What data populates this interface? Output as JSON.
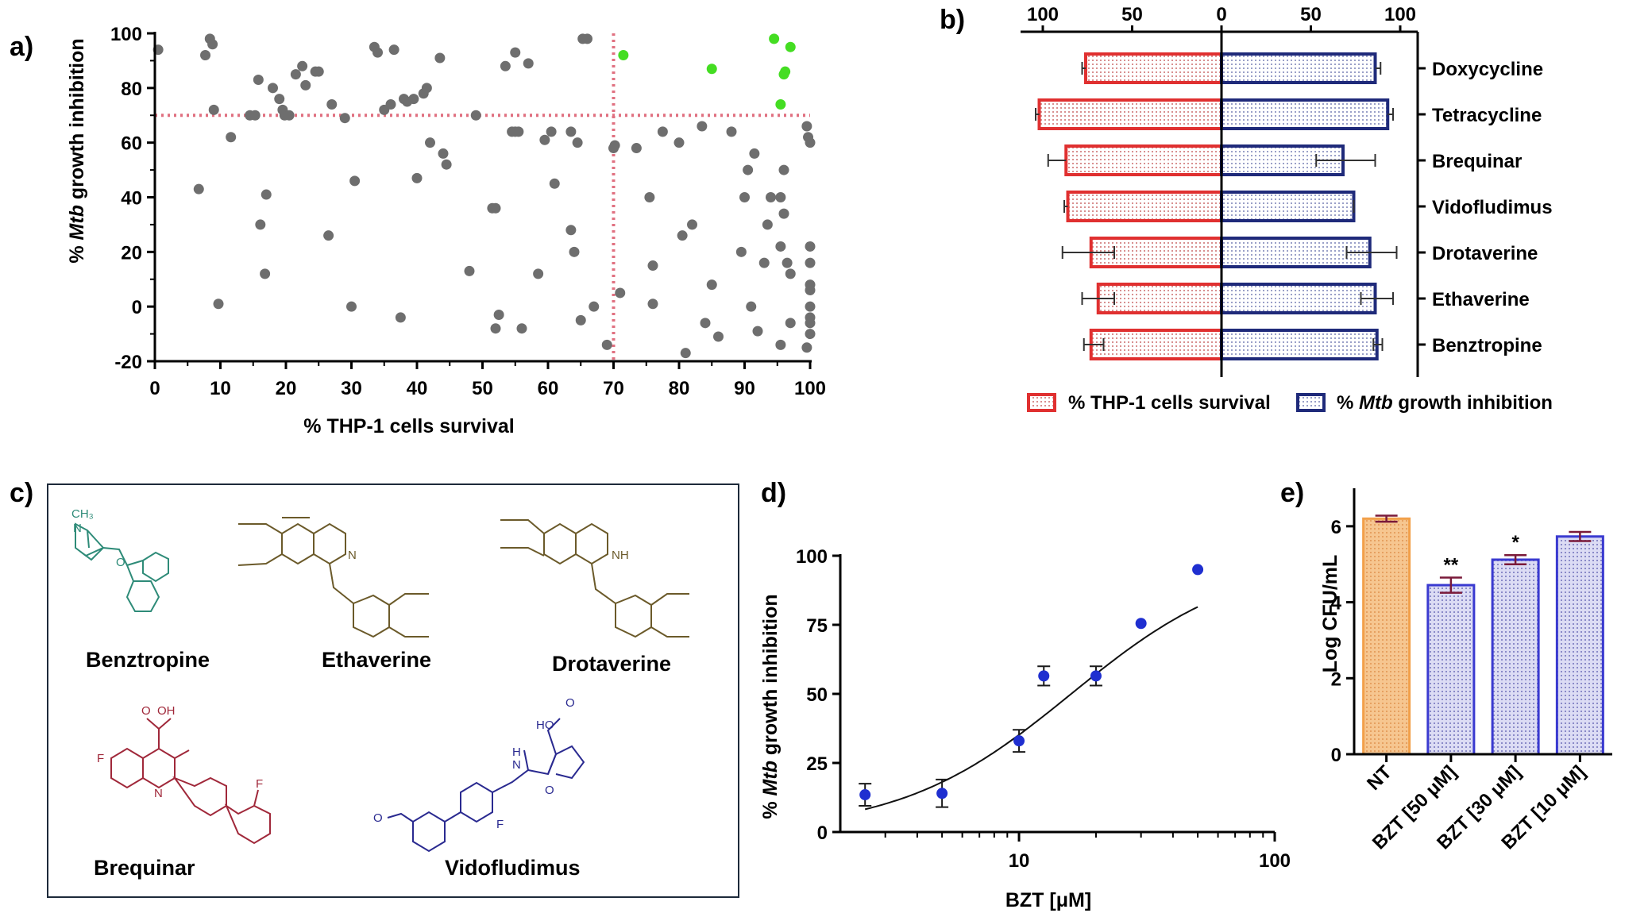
{
  "panels": {
    "a": {
      "label": "a)"
    },
    "b": {
      "label": "b)"
    },
    "c": {
      "label": "c)"
    },
    "d": {
      "label": "d)"
    },
    "e": {
      "label": "e)"
    }
  },
  "chart_data": [
    {
      "id": "a",
      "type": "scatter",
      "xlabel": "% THP-1 cells survival",
      "ylabel_parts": [
        "% ",
        "Mtb",
        " growth  inhibition"
      ],
      "xlim": [
        0,
        100
      ],
      "ylim": [
        -20,
        100
      ],
      "xticks": [
        0,
        10,
        20,
        30,
        40,
        50,
        60,
        70,
        80,
        90,
        100
      ],
      "yticks": [
        -20,
        0,
        20,
        40,
        60,
        80,
        100
      ],
      "threshold_x": 70,
      "threshold_y": 70,
      "colors": {
        "point": "#6e6e6e",
        "hit": "#44dd22",
        "threshold": "#e07080"
      },
      "series": [
        {
          "name": "",
          "color": "#6e6e6e",
          "points": [
            [
              0.5,
              94
            ],
            [
              6.7,
              43
            ],
            [
              7.7,
              92
            ],
            [
              8.4,
              98
            ],
            [
              8.8,
              96
            ],
            [
              9,
              72
            ],
            [
              9.7,
              1
            ],
            [
              11.6,
              62
            ],
            [
              14.5,
              70
            ],
            [
              15.3,
              70
            ],
            [
              15.8,
              83
            ],
            [
              16.1,
              30
            ],
            [
              16.8,
              12
            ],
            [
              17,
              41
            ],
            [
              18,
              80
            ],
            [
              19,
              76
            ],
            [
              19.5,
              72
            ],
            [
              19.8,
              70
            ],
            [
              20.5,
              70
            ],
            [
              21.5,
              85
            ],
            [
              22.5,
              88
            ],
            [
              23,
              81
            ],
            [
              24.5,
              86
            ],
            [
              25,
              86
            ],
            [
              26.5,
              26
            ],
            [
              27,
              74
            ],
            [
              29,
              69
            ],
            [
              30,
              0
            ],
            [
              30.5,
              46
            ],
            [
              33.5,
              95
            ],
            [
              34,
              93
            ],
            [
              35,
              72
            ],
            [
              36,
              74
            ],
            [
              36.5,
              94
            ],
            [
              37.5,
              -4
            ],
            [
              38,
              76
            ],
            [
              38.5,
              75
            ],
            [
              39.5,
              76
            ],
            [
              40,
              47
            ],
            [
              41,
              78
            ],
            [
              41.5,
              80
            ],
            [
              42,
              60
            ],
            [
              43.5,
              91
            ],
            [
              44,
              56
            ],
            [
              44.5,
              52
            ],
            [
              48,
              13
            ],
            [
              49,
              70
            ],
            [
              51.5,
              36
            ],
            [
              52,
              36
            ],
            [
              52,
              -8
            ],
            [
              52.5,
              -3
            ],
            [
              53.5,
              88
            ],
            [
              54.5,
              64
            ],
            [
              55,
              64
            ],
            [
              55,
              93
            ],
            [
              55.5,
              64
            ],
            [
              56,
              -8
            ],
            [
              57,
              89
            ],
            [
              58.5,
              12
            ],
            [
              59.5,
              61
            ],
            [
              60.5,
              64
            ],
            [
              61,
              45
            ],
            [
              63.5,
              64
            ],
            [
              63.5,
              28
            ],
            [
              64,
              20
            ],
            [
              64.5,
              60
            ],
            [
              65,
              -5
            ],
            [
              65.3,
              98
            ],
            [
              66,
              98
            ],
            [
              67,
              0
            ],
            [
              69,
              -14
            ],
            [
              70,
              58
            ],
            [
              70.2,
              59
            ],
            [
              71,
              5
            ],
            [
              73.5,
              58
            ],
            [
              75.5,
              40
            ],
            [
              76,
              15
            ],
            [
              76,
              1
            ],
            [
              77.5,
              64
            ],
            [
              80,
              60
            ],
            [
              80.5,
              26
            ],
            [
              81,
              -17
            ],
            [
              82,
              30
            ],
            [
              83.5,
              66
            ],
            [
              84,
              -6
            ],
            [
              85,
              8
            ],
            [
              86,
              -11
            ],
            [
              88,
              64
            ],
            [
              89.5,
              20
            ],
            [
              90,
              40
            ],
            [
              90.5,
              50
            ],
            [
              91,
              0
            ],
            [
              91.5,
              56
            ],
            [
              92,
              -9
            ],
            [
              93,
              16
            ],
            [
              93.5,
              30
            ],
            [
              94,
              40
            ],
            [
              95.5,
              40
            ],
            [
              95.5,
              22
            ],
            [
              95.5,
              -14
            ],
            [
              96,
              50
            ],
            [
              96,
              34
            ],
            [
              96.5,
              16
            ],
            [
              97,
              12
            ],
            [
              97,
              -6
            ],
            [
              99.5,
              66
            ],
            [
              99.7,
              62
            ],
            [
              100,
              60
            ],
            [
              100,
              22
            ],
            [
              100,
              16
            ],
            [
              100,
              8
            ],
            [
              100,
              6
            ],
            [
              100,
              0
            ],
            [
              100,
              -4
            ],
            [
              100,
              -6
            ],
            [
              100,
              -10
            ],
            [
              99.5,
              -15
            ]
          ]
        },
        {
          "name": "",
          "color": "#44dd22",
          "points": [
            [
              71.5,
              92
            ],
            [
              85,
              87
            ],
            [
              94.5,
              98
            ],
            [
              96,
              85
            ],
            [
              96.2,
              86
            ],
            [
              97,
              95
            ],
            [
              95.5,
              74
            ]
          ]
        }
      ]
    },
    {
      "id": "b",
      "type": "bar",
      "orientation": "horizontal-diverging",
      "xticks": [
        100,
        50,
        0,
        50,
        100
      ],
      "categories": [
        "Doxycycline",
        "Tetracycline",
        "Brequinar",
        "Vidofludimus",
        "Drotaverine",
        "Ethaverine",
        "Benztropine"
      ],
      "series": [
        {
          "name": "% THP-1 cells survival",
          "color": "#e03030",
          "values": [
            76,
            102,
            87,
            86,
            73,
            69,
            73
          ],
          "err_low": [
            0,
            0,
            0,
            0,
            13,
            9,
            7
          ],
          "err_high": [
            2,
            2,
            10,
            2,
            16,
            9,
            4
          ]
        },
        {
          "name_parts": [
            "% ",
            "Mtb",
            " growth inhibition"
          ],
          "color": "#1f2a7a",
          "values": [
            86,
            93,
            68,
            74,
            83,
            86,
            87
          ],
          "err_low": [
            0,
            0,
            15,
            0,
            13,
            8,
            2
          ],
          "err_high": [
            3,
            3,
            18,
            0,
            15,
            10,
            3
          ]
        }
      ],
      "legend": [
        "% THP-1 cells survival",
        "% Mtb growth inhibition"
      ],
      "legend_position": "bottom"
    },
    {
      "id": "d",
      "type": "scatter",
      "xscale": "log",
      "xlabel": "BZT [μM]",
      "ylabel_parts": [
        "% ",
        "Mtb",
        " growth inhibition"
      ],
      "xlim": [
        2,
        100
      ],
      "ylim": [
        0,
        100
      ],
      "xticks": [
        10,
        100
      ],
      "yticks": [
        0,
        25,
        50,
        75,
        100
      ],
      "color": "#1f2fd0",
      "points": [
        [
          2.5,
          13.5
        ],
        [
          5,
          14
        ],
        [
          10,
          33
        ],
        [
          12.5,
          56.5
        ],
        [
          20,
          56.5
        ],
        [
          30,
          75.5
        ],
        [
          50,
          95
        ]
      ],
      "err": [
        4,
        5,
        4,
        3.5,
        3.5,
        0,
        0
      ],
      "fit": {
        "bottom": 0,
        "top": 100,
        "ec50": 16,
        "hill": 1.3
      }
    },
    {
      "id": "e",
      "type": "bar",
      "ylabel": "Log CFU/mL",
      "ylim": [
        0,
        7
      ],
      "yticks": [
        0,
        2,
        4,
        6
      ],
      "categories": [
        "NT",
        "BZT [50 μM]",
        "BZT [30 μM]",
        "BZT [10 μM]"
      ],
      "values": [
        6.2,
        4.45,
        5.12,
        5.73
      ],
      "err": [
        0.08,
        0.2,
        0.12,
        0.12
      ],
      "colors": [
        "#f2a04a",
        "#3a3ad0",
        "#3a3ad0",
        "#3a3ad0"
      ],
      "annotations": [
        "",
        "**",
        "*",
        ""
      ]
    }
  ],
  "structures": [
    {
      "name": "Benztropine",
      "color": "#2e8b78",
      "atoms": [
        "CH₃",
        "N",
        "O"
      ]
    },
    {
      "name": "Ethaverine",
      "color": "#6b5a2a",
      "atoms": [
        "N"
      ]
    },
    {
      "name": "Drotaverine",
      "color": "#6b5a2a",
      "atoms": [
        "NH"
      ]
    },
    {
      "name": "Brequinar",
      "color": "#a0283a",
      "atoms": [
        "OH",
        "O",
        "F",
        "N",
        "F"
      ]
    },
    {
      "name": "Vidofludimus",
      "color": "#2a2a90",
      "atoms": [
        "HO",
        "O",
        "H",
        "N",
        "O",
        "F",
        "O"
      ]
    }
  ]
}
